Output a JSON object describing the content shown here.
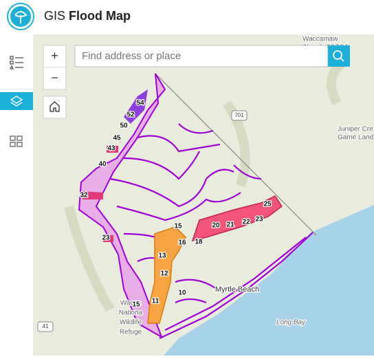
{
  "header": {
    "title_light": "GIS",
    "title_bold": "Flood Map"
  },
  "search": {
    "placeholder": "Find address or place"
  },
  "controls": {
    "zoom_in": "+",
    "zoom_out": "−"
  },
  "map": {
    "places": [
      "Waccamaw",
      "Slough SDTSA",
      "Juniper Cre",
      "Game Land",
      "Myrtle Beach",
      "Long Bay",
      "Wacca",
      "Nationa",
      "Wildlife",
      "Refuge"
    ],
    "shields": [
      "701",
      "41"
    ],
    "zones": [
      "54",
      "52",
      "50",
      "45",
      "43",
      "40",
      "32",
      "23",
      "15",
      "16",
      "18",
      "20",
      "21",
      "22",
      "23",
      "25",
      "13",
      "12",
      "10",
      "15",
      "11"
    ]
  }
}
